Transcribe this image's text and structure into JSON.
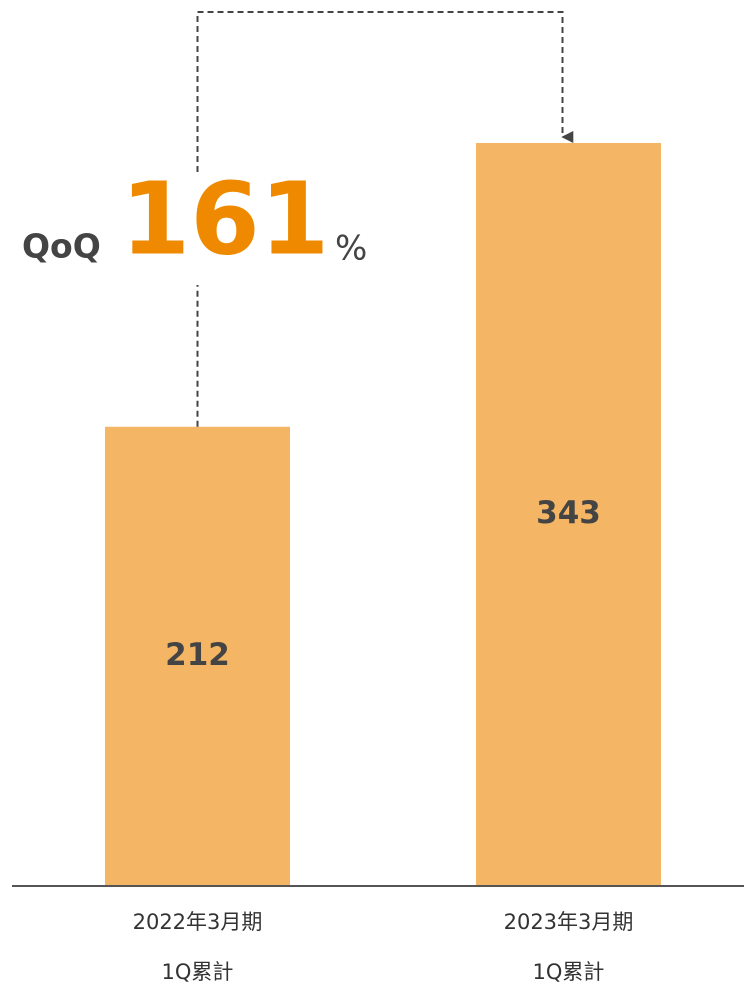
{
  "chart_data": {
    "type": "bar",
    "categories": [
      "2022年3月期\n1Q累計",
      "2023年3月期\n1Q累計"
    ],
    "values": [
      212,
      343
    ],
    "color": "#f4b664",
    "annotation": {
      "prefix": "QoQ",
      "value": 161,
      "suffix": "%"
    }
  }
}
